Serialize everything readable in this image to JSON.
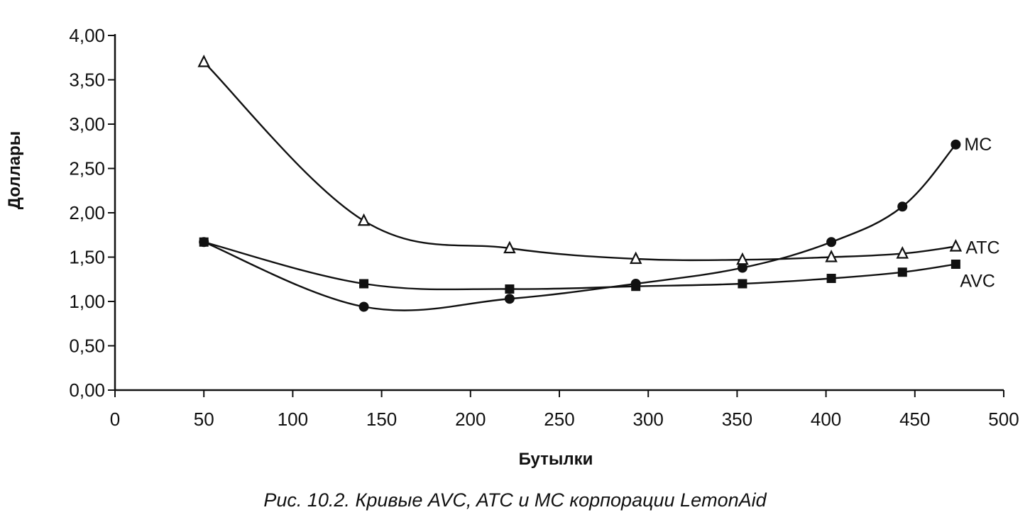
{
  "caption": "Рис. 10.2. Кривые AVC, ATC и MC корпорации LemonAid",
  "chart_data": {
    "type": "line",
    "xlabel": "Бутылки",
    "ylabel": "Доллары",
    "xlim": [
      0,
      500
    ],
    "ylim": [
      0,
      4
    ],
    "x_ticks": [
      0,
      50,
      100,
      150,
      200,
      250,
      300,
      350,
      400,
      450,
      500
    ],
    "x_tick_labels": [
      "0",
      "50",
      "100",
      "150",
      "200",
      "250",
      "300",
      "350",
      "400",
      "450",
      "500"
    ],
    "y_ticks": [
      0,
      0.5,
      1,
      1.5,
      2,
      2.5,
      3,
      3.5,
      4
    ],
    "y_tick_labels": [
      "0,00",
      "0,50",
      "1,00",
      "1,50",
      "2,00",
      "2,50",
      "3,00",
      "3,50",
      "4,00"
    ],
    "grid": false,
    "legend": "none",
    "series": [
      {
        "name": "MC",
        "marker": "circle",
        "x": [
          50,
          140,
          222,
          293,
          353,
          403,
          443,
          473
        ],
        "y": [
          1.67,
          0.94,
          1.03,
          1.2,
          1.38,
          1.67,
          2.07,
          2.77
        ]
      },
      {
        "name": "ATC",
        "marker": "triangle",
        "x": [
          50,
          140,
          222,
          293,
          353,
          403,
          443,
          473
        ],
        "y": [
          3.7,
          1.91,
          1.6,
          1.48,
          1.47,
          1.5,
          1.54,
          1.62
        ]
      },
      {
        "name": "AVC",
        "marker": "square",
        "x": [
          50,
          140,
          222,
          293,
          353,
          403,
          443,
          473
        ],
        "y": [
          1.67,
          1.2,
          1.14,
          1.17,
          1.2,
          1.26,
          1.33,
          1.42
        ]
      }
    ]
  }
}
